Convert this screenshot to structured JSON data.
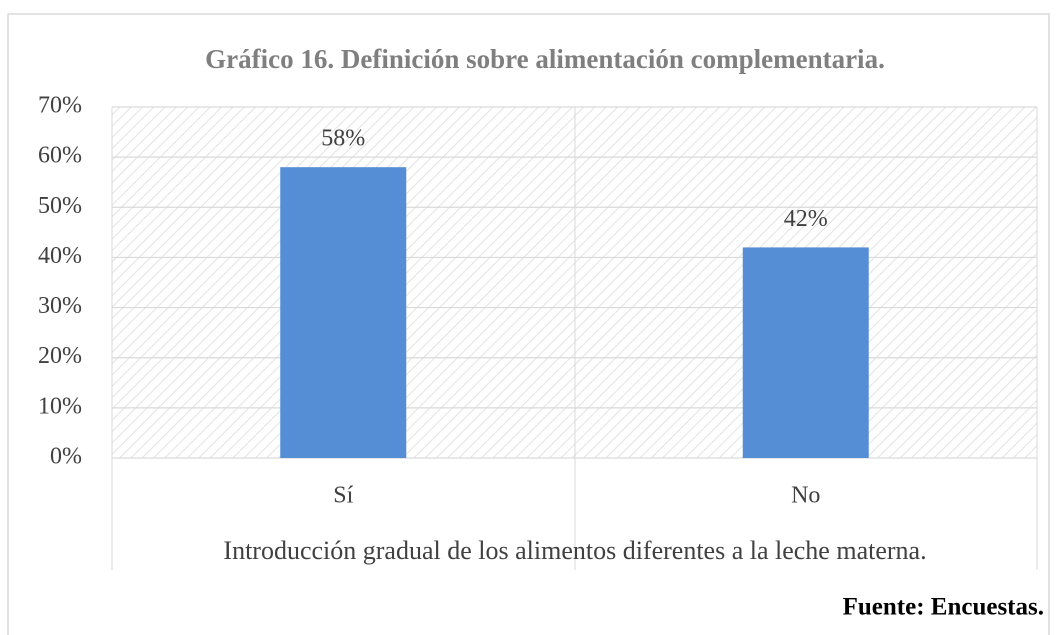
{
  "chart_data": {
    "type": "bar",
    "title": "Gráfico 16. Definición sobre alimentación complementaria.",
    "categories": [
      "Sí",
      "No"
    ],
    "values": [
      58,
      42
    ],
    "value_labels": [
      "58%",
      "42%"
    ],
    "color": "#558ed5",
    "ylim": [
      0,
      70
    ],
    "yticks": [
      {
        "value": 0,
        "label": "0%"
      },
      {
        "value": 10,
        "label": "10%"
      },
      {
        "value": 20,
        "label": "20%"
      },
      {
        "value": 30,
        "label": "30%"
      },
      {
        "value": 40,
        "label": "40%"
      },
      {
        "value": 50,
        "label": "50%"
      },
      {
        "value": 60,
        "label": "60%"
      },
      {
        "value": 70,
        "label": "70%"
      }
    ],
    "grid": true,
    "x_label": "Introducción gradual de los alimentos diferentes a la leche materna.",
    "source": "Fuente: Encuestas."
  }
}
